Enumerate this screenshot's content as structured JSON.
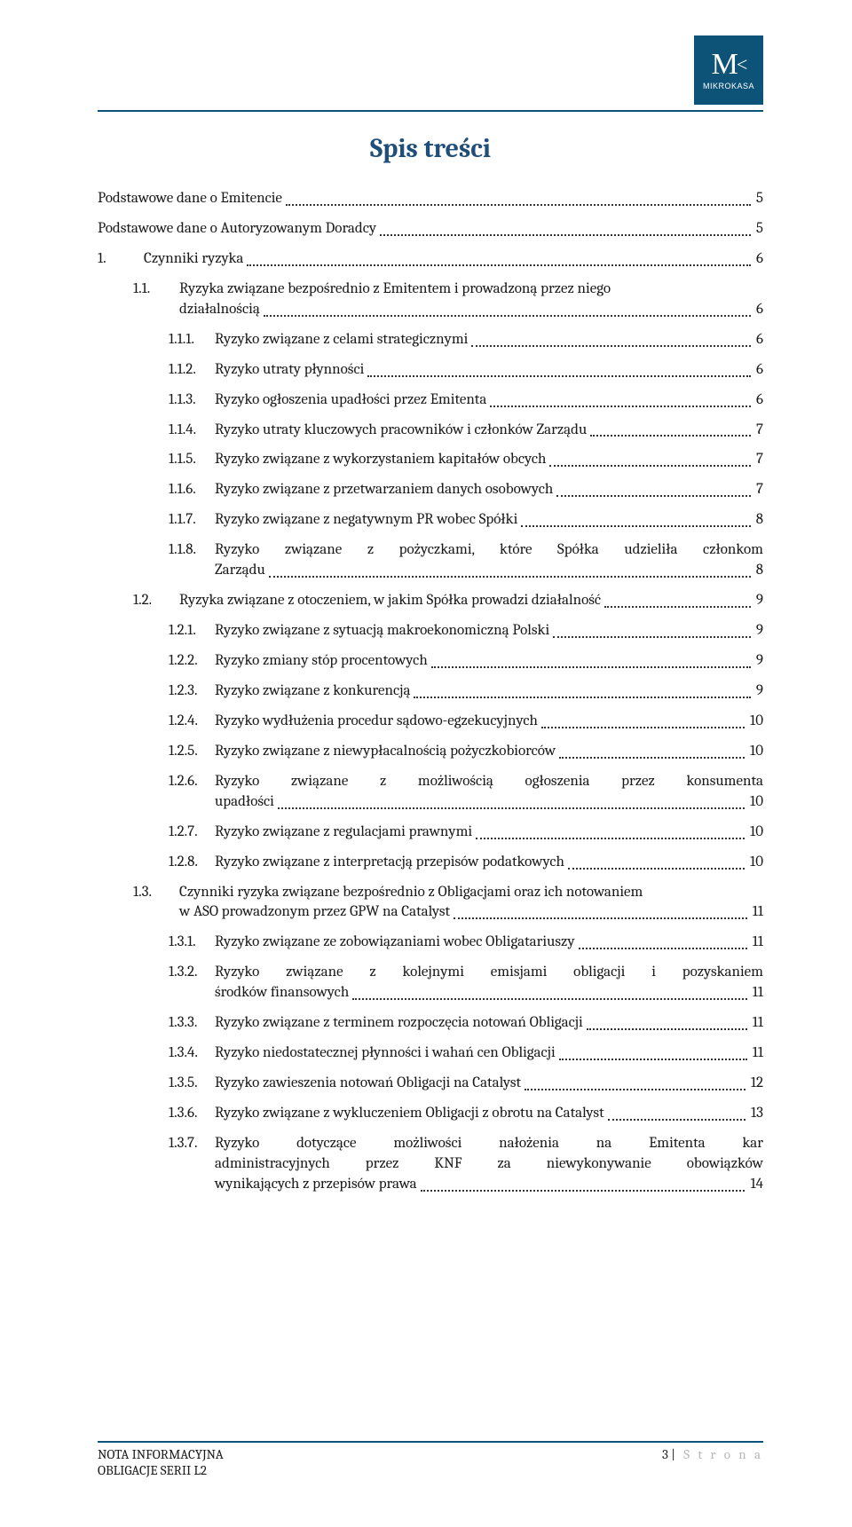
{
  "brand": {
    "logo_letter": "M",
    "logo_name": "MIKROKASA",
    "logo_bg": "#0d5378",
    "logo_fg": "#ffffff"
  },
  "colors": {
    "rule": "#0d5378",
    "title": "#1f4e79",
    "text": "#1a1a1a",
    "page_bg": "#ffffff",
    "strona": "#b7b7b7"
  },
  "title": "Spis treści",
  "toc": [
    {
      "lvl": 0,
      "num": "",
      "label": "Podstawowe dane o Emitencie",
      "page": "5"
    },
    {
      "lvl": 0,
      "num": "",
      "label": "Podstawowe dane o Autoryzowanym Doradcy",
      "page": "5"
    },
    {
      "lvl": 0,
      "num": "1.",
      "label": "Czynniki ryzyka",
      "page": "6"
    },
    {
      "lvl": 1,
      "num": "1.1.",
      "label": "Ryzyka związane bezpośrednio z Emitentem i prowadzoną przez niego działalnością",
      "page": "6",
      "multi": true,
      "last": "działalnością"
    },
    {
      "lvl": 2,
      "num": "1.1.1.",
      "label": "Ryzyko związane z celami strategicznymi",
      "page": "6"
    },
    {
      "lvl": 2,
      "num": "1.1.2.",
      "label": "Ryzyko utraty płynności",
      "page": "6"
    },
    {
      "lvl": 2,
      "num": "1.1.3.",
      "label": "Ryzyko ogłoszenia upadłości przez Emitenta",
      "page": "6"
    },
    {
      "lvl": 2,
      "num": "1.1.4.",
      "label": "Ryzyko utraty kluczowych pracowników i członków Zarządu",
      "page": "7"
    },
    {
      "lvl": 2,
      "num": "1.1.5.",
      "label": "Ryzyko związane z wykorzystaniem kapitałów obcych",
      "page": "7"
    },
    {
      "lvl": 2,
      "num": "1.1.6.",
      "label": "Ryzyko związane z przetwarzaniem danych osobowych",
      "page": "7"
    },
    {
      "lvl": 2,
      "num": "1.1.7.",
      "label": "Ryzyko związane z negatywnym PR wobec Spółki",
      "page": "8"
    },
    {
      "lvl": 2,
      "num": "1.1.8.",
      "label": "Ryzyko związane z pożyczkami, które Spółka udzieliła członkom Zarządu",
      "page": "8",
      "multi": true,
      "justify": true,
      "last": "Zarządu"
    },
    {
      "lvl": 1,
      "num": "1.2.",
      "label": "Ryzyka związane z otoczeniem, w jakim Spółka prowadzi działalność",
      "page": "9"
    },
    {
      "lvl": 2,
      "num": "1.2.1.",
      "label": "Ryzyko związane z sytuacją makroekonomiczną Polski",
      "page": "9"
    },
    {
      "lvl": 2,
      "num": "1.2.2.",
      "label": "Ryzyko zmiany stóp procentowych",
      "page": "9"
    },
    {
      "lvl": 2,
      "num": "1.2.3.",
      "label": "Ryzyko związane z konkurencją",
      "page": "9"
    },
    {
      "lvl": 2,
      "num": "1.2.4.",
      "label": "Ryzyko wydłużenia procedur sądowo-egzekucyjnych",
      "page": "10"
    },
    {
      "lvl": 2,
      "num": "1.2.5.",
      "label": "Ryzyko związane z niewypłacalnością pożyczkobiorców",
      "page": "10"
    },
    {
      "lvl": 2,
      "num": "1.2.6.",
      "label": "Ryzyko związane z możliwością ogłoszenia przez konsumenta upadłości",
      "page": "10",
      "multi": true,
      "justify": true,
      "last": "upadłości"
    },
    {
      "lvl": 2,
      "num": "1.2.7.",
      "label": "Ryzyko związane z regulacjami prawnymi",
      "page": "10"
    },
    {
      "lvl": 2,
      "num": "1.2.8.",
      "label": "Ryzyko związane z interpretacją przepisów podatkowych",
      "page": "10"
    },
    {
      "lvl": 1,
      "num": "1.3.",
      "label": "Czynniki ryzyka związane bezpośrednio z Obligacjami oraz ich notowaniem w ASO prowadzonym przez GPW na Catalyst",
      "page": "11",
      "multi": true,
      "last": "w ASO prowadzonym przez GPW na Catalyst"
    },
    {
      "lvl": 2,
      "num": "1.3.1.",
      "label": "Ryzyko związane ze zobowiązaniami wobec Obligatariuszy",
      "page": "11"
    },
    {
      "lvl": 2,
      "num": "1.3.2.",
      "label": "Ryzyko związane z kolejnymi emisjami obligacji i pozyskaniem środków finansowych",
      "page": "11",
      "multi": true,
      "justify": true,
      "last": "środków finansowych"
    },
    {
      "lvl": 2,
      "num": "1.3.3.",
      "label": "Ryzyko związane z terminem rozpoczęcia notowań Obligacji",
      "page": "11"
    },
    {
      "lvl": 2,
      "num": "1.3.4.",
      "label": "Ryzyko niedostatecznej płynności i wahań cen Obligacji",
      "page": "11"
    },
    {
      "lvl": 2,
      "num": "1.3.5.",
      "label": "Ryzyko zawieszenia notowań Obligacji na Catalyst",
      "page": "12"
    },
    {
      "lvl": 2,
      "num": "1.3.6.",
      "label": "Ryzyko związane z wykluczeniem Obligacji z obrotu na Catalyst",
      "page": "13"
    },
    {
      "lvl": 2,
      "num": "1.3.7.",
      "label": "Ryzyko dotyczące możliwości nałożenia na Emitenta kar administracyjnych przez KNF za niewykonywanie obowiązków wynikających z przepisów prawa",
      "page": "14",
      "multi": true,
      "justify": true,
      "lines": [
        "Ryzyko dotyczące możliwości nałożenia na Emitenta kar",
        "administracyjnych przez KNF za niewykonywanie obowiązków"
      ],
      "last": "wynikających z przepisów prawa"
    }
  ],
  "footer": {
    "left_line1": "NOTA INFORMACYJNA",
    "left_line2": "OBLIGACJE SERII L2",
    "page_num": "3",
    "sep": " | ",
    "strona": "S t r o n a"
  }
}
